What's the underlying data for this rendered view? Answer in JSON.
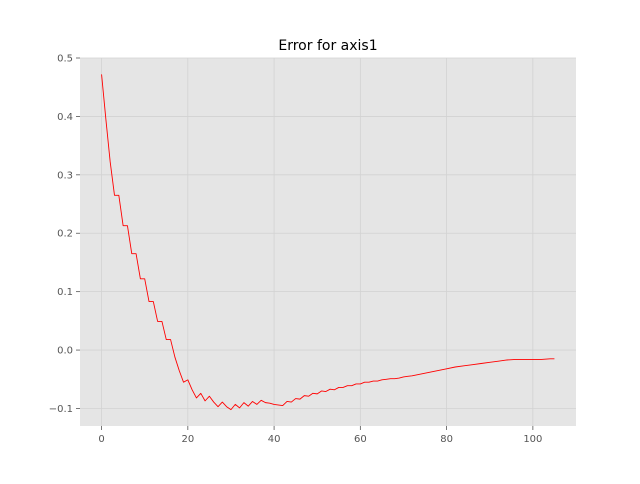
{
  "chart_data": {
    "type": "line",
    "title": "Error for axis1",
    "xlabel": "",
    "ylabel": "",
    "xlim": [
      -5,
      110
    ],
    "ylim": [
      -0.13,
      0.5
    ],
    "grid": true,
    "xticks": [
      0,
      20,
      40,
      60,
      80,
      100
    ],
    "yticks": [
      -0.1,
      0.0,
      0.1,
      0.2,
      0.3,
      0.4,
      0.5
    ],
    "ytick_labels": [
      "−0.1",
      "0.0",
      "0.1",
      "0.2",
      "0.3",
      "0.4",
      "0.5"
    ],
    "xtick_labels": [
      "0",
      "20",
      "40",
      "60",
      "80",
      "100"
    ],
    "colors": {
      "line": "#ff0000",
      "plot_background": "#e5e5e5",
      "grid": "#d2d2d2"
    },
    "series": [
      {
        "x": [
          0,
          1,
          2,
          3,
          4,
          5,
          6,
          7,
          8,
          9,
          10,
          11,
          12,
          13,
          14,
          15,
          16,
          17,
          18,
          19,
          20,
          21,
          22,
          23,
          24,
          25,
          26,
          27,
          28,
          29,
          30,
          31,
          32,
          33,
          34,
          35,
          36,
          37,
          38,
          39,
          40,
          42,
          43,
          44,
          45,
          46,
          47,
          48,
          49,
          50,
          51,
          52,
          53,
          54,
          55,
          56,
          57,
          58,
          59,
          60,
          61,
          62,
          63,
          64,
          65,
          66,
          67,
          68,
          69,
          70,
          71,
          72,
          74,
          76,
          78,
          80,
          82,
          84,
          86,
          88,
          90,
          92,
          94,
          96,
          98,
          100,
          102,
          104,
          105
        ],
        "y": [
          0.472,
          0.395,
          0.322,
          0.265,
          0.265,
          0.213,
          0.213,
          0.165,
          0.165,
          0.122,
          0.122,
          0.083,
          0.083,
          0.049,
          0.049,
          0.018,
          0.018,
          -0.012,
          -0.035,
          -0.055,
          -0.051,
          -0.068,
          -0.082,
          -0.074,
          -0.087,
          -0.079,
          -0.089,
          -0.097,
          -0.089,
          -0.097,
          -0.102,
          -0.093,
          -0.099,
          -0.09,
          -0.096,
          -0.088,
          -0.093,
          -0.086,
          -0.09,
          -0.091,
          -0.093,
          -0.095,
          -0.088,
          -0.089,
          -0.083,
          -0.084,
          -0.078,
          -0.079,
          -0.074,
          -0.075,
          -0.07,
          -0.071,
          -0.067,
          -0.068,
          -0.064,
          -0.064,
          -0.061,
          -0.061,
          -0.058,
          -0.058,
          -0.055,
          -0.055,
          -0.053,
          -0.053,
          -0.051,
          -0.05,
          -0.049,
          -0.049,
          -0.048,
          -0.046,
          -0.045,
          -0.044,
          -0.041,
          -0.038,
          -0.035,
          -0.032,
          -0.029,
          -0.027,
          -0.025,
          -0.023,
          -0.021,
          -0.019,
          -0.017,
          -0.016,
          -0.016,
          -0.016,
          -0.016,
          -0.015,
          -0.015
        ]
      }
    ]
  }
}
